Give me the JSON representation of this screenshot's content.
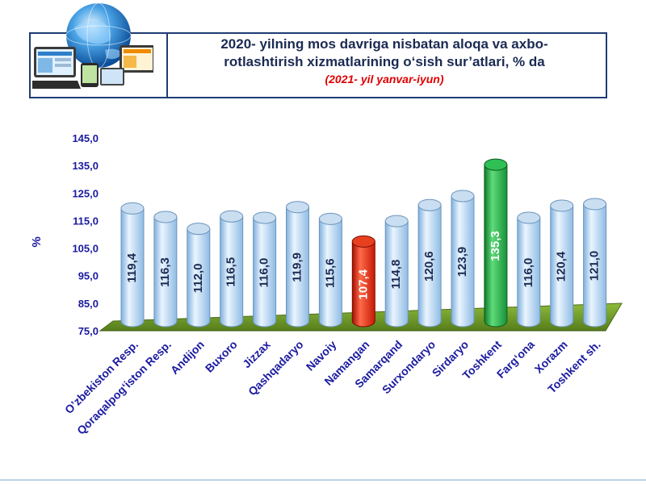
{
  "header": {
    "title_line1": "2020- yilning mos davriga nisbatan aloqa va axbo-",
    "title_line2": "rotlashtirish xizmatlarining o‘sish sur’atlari, % da",
    "subtitle_open": "(",
    "subtitle_text": "2021- yil yanvar-iyun",
    "subtitle_close": ")",
    "logo_icon": "globe-computers-icon"
  },
  "chart_data": {
    "type": "bar",
    "title": "2020- yilning mos davriga nisbatan aloqa va axbo-rotlashtirish xizmatlarining o‘sish sur’atlari, % da",
    "subtitle": "(2021- yil yanvar-iyun)",
    "xlabel": "",
    "ylabel": "%",
    "ylim": [
      75,
      145
    ],
    "yticks": [
      "145,0",
      "135,0",
      "125,0",
      "115,0",
      "105,0",
      "95,0",
      "85,0",
      "75,0"
    ],
    "ytick_values": [
      145,
      135,
      125,
      115,
      105,
      95,
      85,
      75
    ],
    "categories": [
      "O’zbekiston Resp.",
      "Qoraqalpog‘iston Resp.",
      "Andijon",
      "Buxoro",
      "Jizzax",
      "Qashqadaryo",
      "Navoiy",
      "Namangan",
      "Samarqand",
      "Surxondaryo",
      "Sirdaryo",
      "Toshkent",
      "Farg‘ona",
      "Xorazm",
      "Toshkent sh."
    ],
    "values": [
      119.4,
      116.3,
      112.0,
      116.5,
      116.0,
      119.9,
      115.6,
      107.4,
      114.8,
      120.6,
      123.9,
      135.3,
      116.0,
      120.4,
      121.0
    ],
    "value_labels": [
      "119,4",
      "116,3",
      "112,0",
      "116,5",
      "116,0",
      "119,9",
      "115,6",
      "107,4",
      "114,8",
      "120,6",
      "123,9",
      "135,3",
      "116,0",
      "120,4",
      "121,0"
    ],
    "highlight": {
      "Namangan": "#e02010",
      "Toshkent": "#20a040"
    },
    "colors": {
      "default_bar": "#bcd8f2",
      "floor": "#6f9a2a",
      "axis_text": "#1a1aa0"
    },
    "grid": false,
    "legend": "none"
  }
}
